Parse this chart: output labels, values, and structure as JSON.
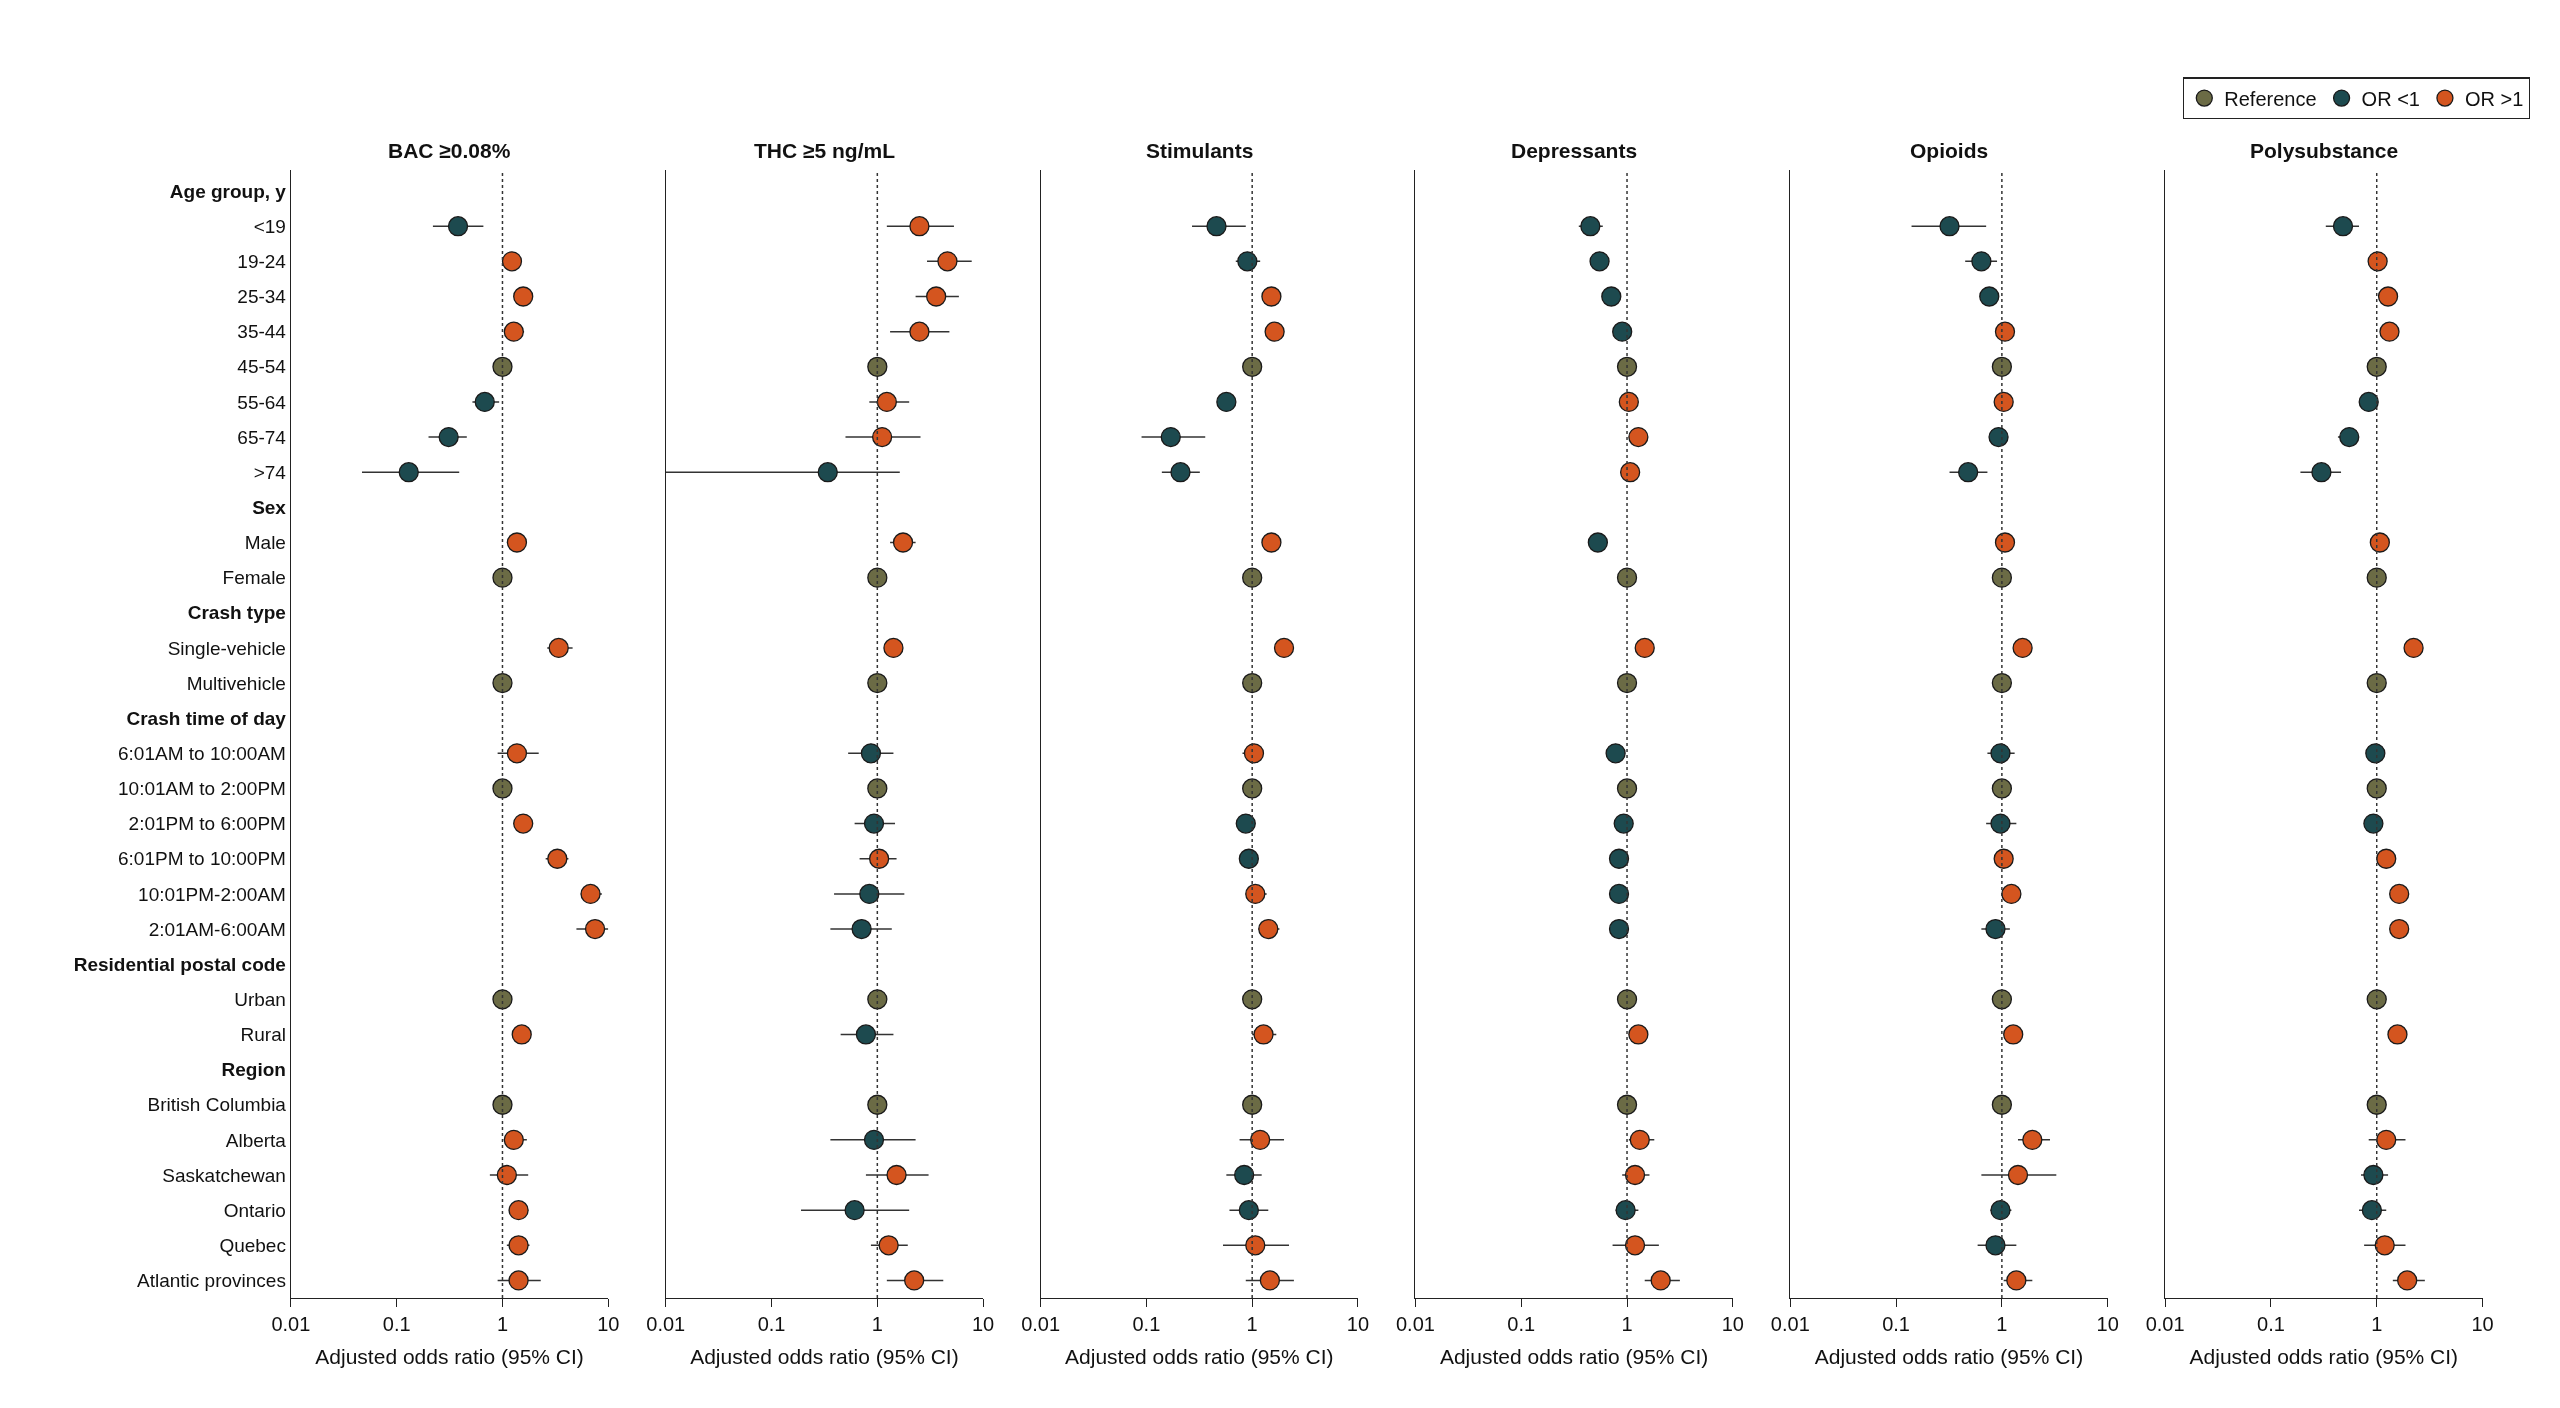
{
  "chart_data": [
    {
      "type": "scatter",
      "orientation": "horizontal",
      "title": "BAC ≥0.08%",
      "xlabel": "Adjusted odds ratio (95% CI)",
      "log": "x",
      "xlim": [
        0.01,
        10
      ],
      "xticks": [
        0.01,
        0.1,
        1,
        10
      ],
      "marker": "circle",
      "ref_lines": [
        {
          "axis": "x",
          "value": 1,
          "line_style": "dotted",
          "color": "#333333"
        }
      ],
      "categories": [
        "Age group, y",
        "<19",
        "19-24",
        "25-34",
        "35-44",
        "45-54",
        "55-64",
        "65-74",
        ">74",
        "Sex",
        "Male",
        "Female",
        "Crash type",
        "Single-vehicle",
        "Multivehicle",
        "Crash time of day",
        "6:01AM to 10:00AM",
        "10:01AM to 2:00PM",
        "2:01PM to 6:00PM",
        "6:01PM to 10:00PM",
        "10:01PM-2:00AM",
        "2:01AM-6:00AM",
        "Residential postal code",
        "Urban",
        "Rural",
        "Region",
        "British Columbia",
        "Alberta",
        "Saskatchewan",
        "Ontario",
        "Quebec",
        "Atlantic provinces"
      ],
      "series": [
        {
          "color": "#6b6b45",
          "values": [
            null,
            null,
            null,
            null,
            null,
            1,
            null,
            null,
            null,
            null,
            null,
            1,
            null,
            null,
            1,
            null,
            null,
            1,
            null,
            null,
            null,
            null,
            null,
            1,
            null,
            null,
            1,
            null,
            null,
            null,
            null,
            null
          ]
        },
        {
          "color": "#1d4a4f",
          "values": [
            null,
            0.38,
            null,
            null,
            null,
            null,
            0.68,
            0.31,
            0.13,
            null,
            null,
            null,
            null,
            null,
            null,
            null,
            null,
            null,
            null,
            null,
            null,
            null,
            null,
            null,
            null,
            null,
            null,
            null,
            null,
            null,
            null,
            null
          ],
          "errors": [
            null,
            [
              0.22,
              0.66
            ],
            null,
            null,
            null,
            null,
            [
              0.52,
              0.93
            ],
            [
              0.2,
              0.46
            ],
            [
              0.047,
              0.39
            ],
            null,
            null,
            null,
            null,
            null,
            null,
            null,
            null,
            null,
            null,
            null,
            null,
            null,
            null,
            null,
            null,
            null,
            null,
            null,
            null,
            null,
            null,
            null
          ]
        },
        {
          "color": "#d4551f",
          "values": [
            null,
            null,
            1.23,
            1.57,
            1.28,
            null,
            null,
            null,
            null,
            null,
            1.37,
            null,
            null,
            3.4,
            null,
            null,
            1.37,
            null,
            1.57,
            3.3,
            6.8,
            7.5,
            null,
            null,
            1.52,
            null,
            null,
            1.28,
            1.1,
            1.42,
            1.42,
            1.42
          ],
          "errors": [
            null,
            null,
            null,
            null,
            [
              1.07,
              1.6
            ],
            null,
            null,
            null,
            null,
            null,
            [
              1.1,
              1.7
            ],
            null,
            null,
            [
              2.65,
              4.6
            ],
            null,
            null,
            [
              0.9,
              2.2
            ],
            null,
            [
              1.28,
              1.94
            ],
            [
              2.56,
              4.2
            ],
            [
              5.5,
              8.7
            ],
            [
              5,
              10
            ],
            null,
            null,
            null,
            null,
            null,
            [
              1.03,
              1.7
            ],
            [
              0.76,
              1.75
            ],
            [
              1.15,
              1.75
            ],
            [
              1.1,
              1.8
            ],
            [
              0.9,
              2.3
            ]
          ]
        }
      ]
    },
    {
      "type": "scatter",
      "orientation": "horizontal",
      "title": "THC ≥5 ng/mL",
      "xlabel": "Adjusted odds ratio (95% CI)",
      "log": "x",
      "xlim": [
        0.01,
        10
      ],
      "xticks": [
        0.01,
        0.1,
        1,
        10
      ],
      "marker": "circle",
      "tick_labels": "x",
      "ref_lines": [
        {
          "axis": "x",
          "value": 1,
          "line_style": "dotted",
          "color": "#333333"
        }
      ],
      "categories": [
        "Age group, y",
        "<19",
        "19-24",
        "25-34",
        "35-44",
        "45-54",
        "55-64",
        "65-74",
        ">74",
        "Sex",
        "Male",
        "Female",
        "Crash type",
        "Single-vehicle",
        "Multivehicle",
        "Crash time of day",
        "6:01AM to 10:00AM",
        "10:01AM to 2:00PM",
        "2:01PM to 6:00PM",
        "6:01PM to 10:00PM",
        "10:01PM-2:00AM",
        "2:01AM-6:00AM",
        "Residential postal code",
        "Urban",
        "Rural",
        "Region",
        "British Columbia",
        "Alberta",
        "Saskatchewan",
        "Ontario",
        "Quebec",
        "Atlantic provinces"
      ],
      "series": [
        {
          "color": "#6b6b45",
          "values": [
            null,
            null,
            null,
            null,
            null,
            1,
            null,
            null,
            null,
            null,
            null,
            1,
            null,
            null,
            1,
            null,
            null,
            1,
            null,
            null,
            null,
            null,
            null,
            1,
            null,
            null,
            1,
            null,
            null,
            null,
            null,
            null
          ]
        },
        {
          "color": "#1d4a4f",
          "values": [
            null,
            null,
            null,
            null,
            null,
            null,
            null,
            null,
            0.34,
            null,
            null,
            null,
            null,
            null,
            null,
            null,
            0.87,
            null,
            0.93,
            null,
            0.84,
            0.71,
            null,
            null,
            0.78,
            null,
            null,
            0.93,
            null,
            0.61,
            null,
            null
          ],
          "errors": [
            null,
            null,
            null,
            null,
            null,
            null,
            null,
            null,
            [
              0.01,
              1.63
            ],
            null,
            null,
            null,
            null,
            null,
            null,
            null,
            [
              0.53,
              1.42
            ],
            null,
            [
              0.61,
              1.47
            ],
            null,
            [
              0.39,
              1.8
            ],
            [
              0.36,
              1.37
            ],
            null,
            null,
            [
              0.45,
              1.42
            ],
            null,
            null,
            [
              0.36,
              2.3
            ],
            null,
            [
              0.19,
              2.0
            ],
            null,
            null
          ]
        },
        {
          "color": "#d4551f",
          "values": [
            null,
            2.5,
            4.6,
            3.6,
            2.5,
            null,
            1.23,
            1.11,
            null,
            null,
            1.75,
            null,
            null,
            1.42,
            null,
            null,
            null,
            null,
            null,
            1.04,
            null,
            null,
            null,
            null,
            null,
            null,
            null,
            null,
            1.52,
            null,
            1.28,
            2.23
          ],
          "errors": [
            null,
            [
              1.23,
              5.3
            ],
            [
              2.95,
              7.8
            ],
            [
              2.3,
              5.9
            ],
            [
              1.32,
              4.8
            ],
            null,
            [
              0.84,
              2.0
            ],
            [
              0.5,
              2.56
            ],
            null,
            null,
            [
              1.32,
              2.3
            ],
            null,
            null,
            null,
            null,
            null,
            null,
            null,
            null,
            [
              0.68,
              1.52
            ],
            null,
            null,
            null,
            null,
            null,
            null,
            null,
            null,
            [
              0.78,
              3.05
            ],
            null,
            [
              0.87,
              1.94
            ],
            [
              1.23,
              4.2
            ]
          ]
        }
      ]
    },
    {
      "type": "scatter",
      "orientation": "horizontal",
      "title": "Stimulants",
      "xlabel": "Adjusted odds ratio (95% CI)",
      "log": "x",
      "xlim": [
        0.01,
        10
      ],
      "xticks": [
        0.01,
        0.1,
        1,
        10
      ],
      "marker": "circle",
      "tick_labels": "x",
      "ref_lines": [
        {
          "axis": "x",
          "value": 1,
          "line_style": "dotted",
          "color": "#333333"
        }
      ],
      "categories": [
        "Age group, y",
        "<19",
        "19-24",
        "25-34",
        "35-44",
        "45-54",
        "55-64",
        "65-74",
        ">74",
        "Sex",
        "Male",
        "Female",
        "Crash type",
        "Single-vehicle",
        "Multivehicle",
        "Crash time of day",
        "6:01AM to 10:00AM",
        "10:01AM to 2:00PM",
        "2:01PM to 6:00PM",
        "6:01PM to 10:00PM",
        "10:01PM-2:00AM",
        "2:01AM-6:00AM",
        "Residential postal code",
        "Urban",
        "Rural",
        "Region",
        "British Columbia",
        "Alberta",
        "Saskatchewan",
        "Ontario",
        "Quebec",
        "Atlantic provinces"
      ],
      "series": [
        {
          "color": "#6b6b45",
          "values": [
            null,
            null,
            null,
            null,
            null,
            1,
            null,
            null,
            null,
            null,
            null,
            1,
            null,
            null,
            1,
            null,
            null,
            1,
            null,
            null,
            null,
            null,
            null,
            1,
            null,
            null,
            1,
            null,
            null,
            null,
            null,
            null
          ]
        },
        {
          "color": "#1d4a4f",
          "values": [
            null,
            0.46,
            0.9,
            null,
            null,
            null,
            0.57,
            0.17,
            0.21,
            null,
            null,
            null,
            null,
            null,
            null,
            null,
            null,
            null,
            0.87,
            0.93,
            null,
            null,
            null,
            null,
            null,
            null,
            null,
            null,
            0.84,
            0.93,
            null,
            null
          ],
          "errors": [
            null,
            [
              0.27,
              0.87
            ],
            [
              0.7,
              1.19
            ],
            null,
            null,
            null,
            null,
            [
              0.09,
              0.36
            ],
            [
              0.14,
              0.32
            ],
            null,
            null,
            null,
            null,
            null,
            null,
            null,
            null,
            null,
            null,
            null,
            null,
            null,
            null,
            null,
            null,
            null,
            null,
            null,
            [
              0.57,
              1.23
            ],
            [
              0.61,
              1.42
            ],
            null,
            null
          ]
        },
        {
          "color": "#d4551f",
          "values": [
            null,
            null,
            null,
            1.52,
            1.63,
            null,
            null,
            null,
            null,
            null,
            1.52,
            null,
            null,
            2.0,
            null,
            null,
            1.04,
            null,
            null,
            null,
            1.07,
            1.42,
            null,
            null,
            1.28,
            null,
            null,
            1.19,
            null,
            null,
            1.07,
            1.47
          ],
          "errors": [
            null,
            null,
            null,
            [
              1.28,
              1.87
            ],
            null,
            null,
            null,
            null,
            null,
            null,
            null,
            null,
            null,
            null,
            null,
            null,
            [
              0.81,
              1.28
            ],
            null,
            null,
            null,
            [
              0.87,
              1.37
            ],
            [
              1.15,
              1.81
            ],
            null,
            null,
            [
              1.0,
              1.69
            ],
            null,
            null,
            [
              0.76,
              2.0
            ],
            null,
            null,
            [
              0.53,
              2.23
            ],
            [
              0.87,
              2.48
            ]
          ]
        }
      ]
    },
    {
      "type": "scatter",
      "orientation": "horizontal",
      "title": "Depressants",
      "xlabel": "Adjusted odds ratio (95% CI)",
      "log": "x",
      "xlim": [
        0.01,
        10
      ],
      "xticks": [
        0.01,
        0.1,
        1,
        10
      ],
      "marker": "circle",
      "tick_labels": "x",
      "ref_lines": [
        {
          "axis": "x",
          "value": 1,
          "line_style": "dotted",
          "color": "#333333"
        }
      ],
      "categories": [
        "Age group, y",
        "<19",
        "19-24",
        "25-34",
        "35-44",
        "45-54",
        "55-64",
        "65-74",
        ">74",
        "Sex",
        "Male",
        "Female",
        "Crash type",
        "Single-vehicle",
        "Multivehicle",
        "Crash time of day",
        "6:01AM to 10:00AM",
        "10:01AM to 2:00PM",
        "2:01PM to 6:00PM",
        "6:01PM to 10:00PM",
        "10:01PM-2:00AM",
        "2:01AM-6:00AM",
        "Residential postal code",
        "Urban",
        "Rural",
        "Region",
        "British Columbia",
        "Alberta",
        "Saskatchewan",
        "Ontario",
        "Quebec",
        "Atlantic provinces"
      ],
      "series": [
        {
          "color": "#6b6b45",
          "values": [
            null,
            null,
            null,
            null,
            null,
            1,
            null,
            null,
            null,
            null,
            null,
            1,
            null,
            null,
            1,
            null,
            null,
            1,
            null,
            null,
            null,
            null,
            null,
            1,
            null,
            null,
            1,
            null,
            null,
            null,
            null,
            null
          ]
        },
        {
          "color": "#1d4a4f",
          "values": [
            null,
            0.45,
            0.55,
            0.71,
            0.9,
            null,
            null,
            null,
            null,
            null,
            0.53,
            null,
            null,
            null,
            null,
            null,
            0.78,
            null,
            0.93,
            0.84,
            0.84,
            0.84,
            null,
            null,
            null,
            null,
            null,
            null,
            null,
            0.97,
            null,
            null
          ],
          "errors": [
            null,
            [
              0.35,
              0.59
            ],
            null,
            null,
            null,
            null,
            null,
            null,
            null,
            null,
            null,
            null,
            null,
            null,
            null,
            null,
            null,
            null,
            null,
            null,
            [
              0.71,
              1.04
            ],
            [
              0.68,
              1.04
            ],
            null,
            null,
            null,
            null,
            null,
            null,
            null,
            [
              0.78,
              1.28
            ],
            null,
            null
          ]
        },
        {
          "color": "#d4551f",
          "values": [
            null,
            null,
            null,
            null,
            null,
            null,
            1.04,
            1.28,
            1.07,
            null,
            null,
            null,
            null,
            1.47,
            null,
            null,
            null,
            null,
            null,
            null,
            null,
            null,
            null,
            null,
            1.28,
            null,
            null,
            1.32,
            1.19,
            null,
            1.19,
            2.08
          ],
          "errors": [
            null,
            null,
            null,
            null,
            null,
            null,
            null,
            null,
            null,
            null,
            null,
            null,
            null,
            null,
            null,
            null,
            null,
            null,
            null,
            null,
            null,
            null,
            null,
            null,
            null,
            null,
            null,
            [
              1.04,
              1.81
            ],
            [
              0.9,
              1.63
            ],
            null,
            [
              0.73,
              2.0
            ],
            [
              1.47,
              3.16
            ]
          ]
        }
      ]
    },
    {
      "type": "scatter",
      "orientation": "horizontal",
      "title": "Opioids",
      "xlabel": "Adjusted odds ratio (95% CI)",
      "log": "x",
      "xlim": [
        0.01,
        10
      ],
      "xticks": [
        0.01,
        0.1,
        1,
        10
      ],
      "marker": "circle",
      "tick_labels": "x",
      "ref_lines": [
        {
          "axis": "x",
          "value": 1,
          "line_style": "dotted",
          "color": "#333333"
        }
      ],
      "categories": [
        "Age group, y",
        "<19",
        "19-24",
        "25-34",
        "35-44",
        "45-54",
        "55-64",
        "65-74",
        ">74",
        "Sex",
        "Male",
        "Female",
        "Crash type",
        "Single-vehicle",
        "Multivehicle",
        "Crash time of day",
        "6:01AM to 10:00AM",
        "10:01AM to 2:00PM",
        "2:01PM to 6:00PM",
        "6:01PM to 10:00PM",
        "10:01PM-2:00AM",
        "2:01AM-6:00AM",
        "Residential postal code",
        "Urban",
        "Rural",
        "Region",
        "British Columbia",
        "Alberta",
        "Saskatchewan",
        "Ontario",
        "Quebec",
        "Atlantic provinces"
      ],
      "series": [
        {
          "color": "#6b6b45",
          "values": [
            null,
            null,
            null,
            null,
            null,
            1,
            null,
            null,
            null,
            null,
            null,
            1,
            null,
            null,
            1,
            null,
            null,
            1,
            null,
            null,
            null,
            null,
            null,
            1,
            null,
            null,
            1,
            null,
            null,
            null,
            null,
            null
          ]
        },
        {
          "color": "#1d4a4f",
          "values": [
            null,
            0.32,
            0.64,
            0.76,
            null,
            null,
            null,
            0.93,
            0.48,
            null,
            null,
            null,
            null,
            null,
            null,
            null,
            0.97,
            null,
            0.97,
            null,
            null,
            0.87,
            null,
            null,
            null,
            null,
            null,
            null,
            null,
            0.97,
            0.87,
            null
          ],
          "errors": [
            null,
            [
              0.14,
              0.71
            ],
            [
              0.45,
              0.9
            ],
            null,
            null,
            null,
            null,
            null,
            [
              0.32,
              0.73
            ],
            null,
            null,
            null,
            null,
            null,
            null,
            null,
            [
              0.73,
              1.32
            ],
            null,
            [
              0.71,
              1.37
            ],
            null,
            null,
            [
              0.64,
              1.19
            ],
            null,
            null,
            null,
            null,
            null,
            null,
            null,
            [
              0.78,
              1.23
            ],
            [
              0.59,
              1.37
            ],
            null
          ]
        },
        {
          "color": "#d4551f",
          "values": [
            null,
            null,
            null,
            null,
            1.07,
            null,
            1.04,
            null,
            null,
            null,
            1.07,
            null,
            null,
            1.57,
            null,
            null,
            null,
            null,
            null,
            1.04,
            1.23,
            null,
            null,
            null,
            1.28,
            null,
            null,
            1.94,
            1.42,
            null,
            null,
            1.37
          ],
          "errors": [
            null,
            null,
            null,
            null,
            null,
            null,
            null,
            null,
            null,
            null,
            null,
            null,
            null,
            null,
            null,
            null,
            null,
            null,
            null,
            null,
            null,
            null,
            null,
            null,
            null,
            null,
            null,
            [
              1.42,
              2.85
            ],
            [
              0.64,
              3.27
            ],
            null,
            null,
            [
              1.04,
              1.94
            ]
          ]
        }
      ]
    },
    {
      "type": "scatter",
      "orientation": "horizontal",
      "title": "Polysubstance",
      "xlabel": "Adjusted odds ratio (95% CI)",
      "log": "x",
      "xlim": [
        0.01,
        10
      ],
      "xticks": [
        0.01,
        0.1,
        1,
        10
      ],
      "marker": "circle",
      "tick_labels": "x",
      "legend": "top right",
      "ref_lines": [
        {
          "axis": "x",
          "value": 1,
          "line_style": "dotted",
          "color": "#333333"
        }
      ],
      "categories": [
        "Age group, y",
        "<19",
        "19-24",
        "25-34",
        "35-44",
        "45-54",
        "55-64",
        "65-74",
        ">74",
        "Sex",
        "Male",
        "Female",
        "Crash type",
        "Single-vehicle",
        "Multivehicle",
        "Crash time of day",
        "6:01AM to 10:00AM",
        "10:01AM to 2:00PM",
        "2:01PM to 6:00PM",
        "6:01PM to 10:00PM",
        "10:01PM-2:00AM",
        "2:01AM-6:00AM",
        "Residential postal code",
        "Urban",
        "Rural",
        "Region",
        "British Columbia",
        "Alberta",
        "Saskatchewan",
        "Ontario",
        "Quebec",
        "Atlantic provinces"
      ],
      "series": [
        {
          "name": "Reference",
          "color": "#6b6b45",
          "values": [
            null,
            null,
            null,
            null,
            null,
            1,
            null,
            null,
            null,
            null,
            null,
            1,
            null,
            null,
            1,
            null,
            null,
            1,
            null,
            null,
            null,
            null,
            null,
            1,
            null,
            null,
            1,
            null,
            null,
            null,
            null,
            null
          ]
        },
        {
          "name": "OR <1",
          "color": "#1d4a4f",
          "values": [
            null,
            0.48,
            null,
            null,
            null,
            null,
            0.84,
            0.55,
            0.3,
            null,
            null,
            null,
            null,
            null,
            null,
            null,
            0.97,
            null,
            0.93,
            null,
            null,
            null,
            null,
            null,
            null,
            null,
            null,
            null,
            0.93,
            0.9,
            null,
            null
          ],
          "errors": [
            null,
            [
              0.33,
              0.68
            ],
            null,
            null,
            null,
            null,
            null,
            [
              0.43,
              0.68
            ],
            [
              0.19,
              0.46
            ],
            null,
            null,
            null,
            null,
            null,
            null,
            null,
            null,
            null,
            null,
            null,
            null,
            null,
            null,
            null,
            null,
            null,
            null,
            null,
            [
              0.71,
              1.28
            ],
            [
              0.68,
              1.23
            ],
            null,
            null
          ]
        },
        {
          "name": "OR >1",
          "color": "#d4551f",
          "values": [
            null,
            null,
            1.02,
            1.28,
            1.32,
            null,
            null,
            null,
            null,
            null,
            1.07,
            null,
            null,
            2.23,
            null,
            null,
            null,
            null,
            null,
            1.23,
            1.63,
            1.63,
            null,
            null,
            1.57,
            null,
            null,
            1.23,
            null,
            null,
            1.19,
            1.94
          ],
          "errors": [
            null,
            null,
            null,
            null,
            null,
            null,
            null,
            null,
            null,
            null,
            null,
            null,
            null,
            null,
            null,
            null,
            null,
            null,
            null,
            null,
            null,
            null,
            null,
            null,
            null,
            null,
            null,
            [
              0.84,
              1.87
            ],
            null,
            null,
            [
              0.76,
              1.87
            ],
            [
              1.42,
              2.85
            ]
          ]
        }
      ]
    }
  ]
}
